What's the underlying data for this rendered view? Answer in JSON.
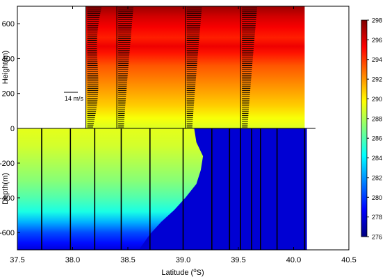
{
  "chart_data": {
    "type": "heatmap",
    "title": "",
    "xlabel": "Latitude (°S)",
    "xlabel_parts": {
      "prefix": "Latitude (",
      "sup": "o",
      "suffix": "S)"
    },
    "xlim": [
      37.5,
      40.5
    ],
    "x_ticks": [
      37.5,
      38.0,
      38.5,
      39.0,
      39.5,
      40.0,
      40.5
    ],
    "x_tick_labels": [
      "37.5",
      "38.0",
      "38.5",
      "39.0",
      "39.5",
      "40.0",
      "40.5"
    ],
    "panels": [
      {
        "name": "atmosphere",
        "ylabel": "Height(m)",
        "ylim": [
          0,
          700
        ],
        "y_ticks": [
          0,
          200,
          400,
          600
        ],
        "y_tick_labels": [
          "0",
          "200",
          "400",
          "600"
        ],
        "data_extent_x": [
          38.12,
          40.1
        ],
        "profile_latitudes": [
          38.12,
          38.4,
          39.02,
          39.52
        ],
        "gradient_bands": [
          {
            "h": 0,
            "t": 289.0
          },
          {
            "h": 60,
            "t": 289.6
          },
          {
            "h": 130,
            "t": 290.8
          },
          {
            "h": 200,
            "t": 291.6
          },
          {
            "h": 290,
            "t": 292.6
          },
          {
            "h": 360,
            "t": 293.4
          },
          {
            "h": 430,
            "t": 294.8
          },
          {
            "h": 470,
            "t": 295.6
          },
          {
            "h": 520,
            "t": 294.6
          },
          {
            "h": 580,
            "t": 295.4
          },
          {
            "h": 640,
            "t": 296.2
          },
          {
            "h": 700,
            "t": 297.4
          }
        ]
      },
      {
        "name": "ocean",
        "ylabel": "Depth(m)",
        "ylim": [
          -700,
          0
        ],
        "y_ticks": [
          -600,
          -400,
          -200,
          0
        ],
        "y_tick_labels": [
          "-600",
          "-400",
          "-200",
          "0"
        ],
        "data_extent_x": [
          37.5,
          40.12
        ],
        "cast_latitudes": [
          37.72,
          37.98,
          38.2,
          38.44,
          38.7,
          39.0,
          39.26,
          39.42,
          39.52,
          39.62,
          39.7,
          39.85,
          40.1
        ],
        "warm_profile": [
          {
            "d": 0,
            "t": 289.2
          },
          {
            "d": -100,
            "t": 288.8
          },
          {
            "d": -200,
            "t": 288.0
          },
          {
            "d": -300,
            "t": 287.2
          },
          {
            "d": -400,
            "t": 286.0
          },
          {
            "d": -480,
            "t": 284.8
          },
          {
            "d": -540,
            "t": 282.6
          },
          {
            "d": -600,
            "t": 280.4
          },
          {
            "d": -660,
            "t": 279.0
          },
          {
            "d": -700,
            "t": 278.0
          }
        ],
        "cold_temperature": 277.8,
        "front_boundary": [
          {
            "lat": 39.1,
            "d": 0
          },
          {
            "lat": 39.12,
            "d": -80
          },
          {
            "lat": 39.18,
            "d": -160
          },
          {
            "lat": 39.16,
            "d": -240
          },
          {
            "lat": 39.12,
            "d": -320
          },
          {
            "lat": 39.02,
            "d": -400
          },
          {
            "lat": 38.92,
            "d": -470
          },
          {
            "lat": 38.8,
            "d": -540
          },
          {
            "lat": 38.7,
            "d": -610
          },
          {
            "lat": 38.6,
            "d": -700
          }
        ]
      }
    ],
    "wind_scale_label": "14 m/s",
    "colorbar": {
      "min": 276,
      "max": 298,
      "ticks": [
        276,
        278,
        280,
        282,
        284,
        286,
        288,
        290,
        292,
        294,
        296,
        298
      ],
      "tick_labels": [
        "276",
        "278",
        "280",
        "282",
        "284",
        "286",
        "288",
        "290",
        "292",
        "294",
        "296",
        "298"
      ],
      "palette": [
        "#00007f",
        "#0000ff",
        "#007fff",
        "#00ffff",
        "#7fff7f",
        "#ffff00",
        "#ff7f00",
        "#ff0000",
        "#7f0000"
      ]
    }
  }
}
